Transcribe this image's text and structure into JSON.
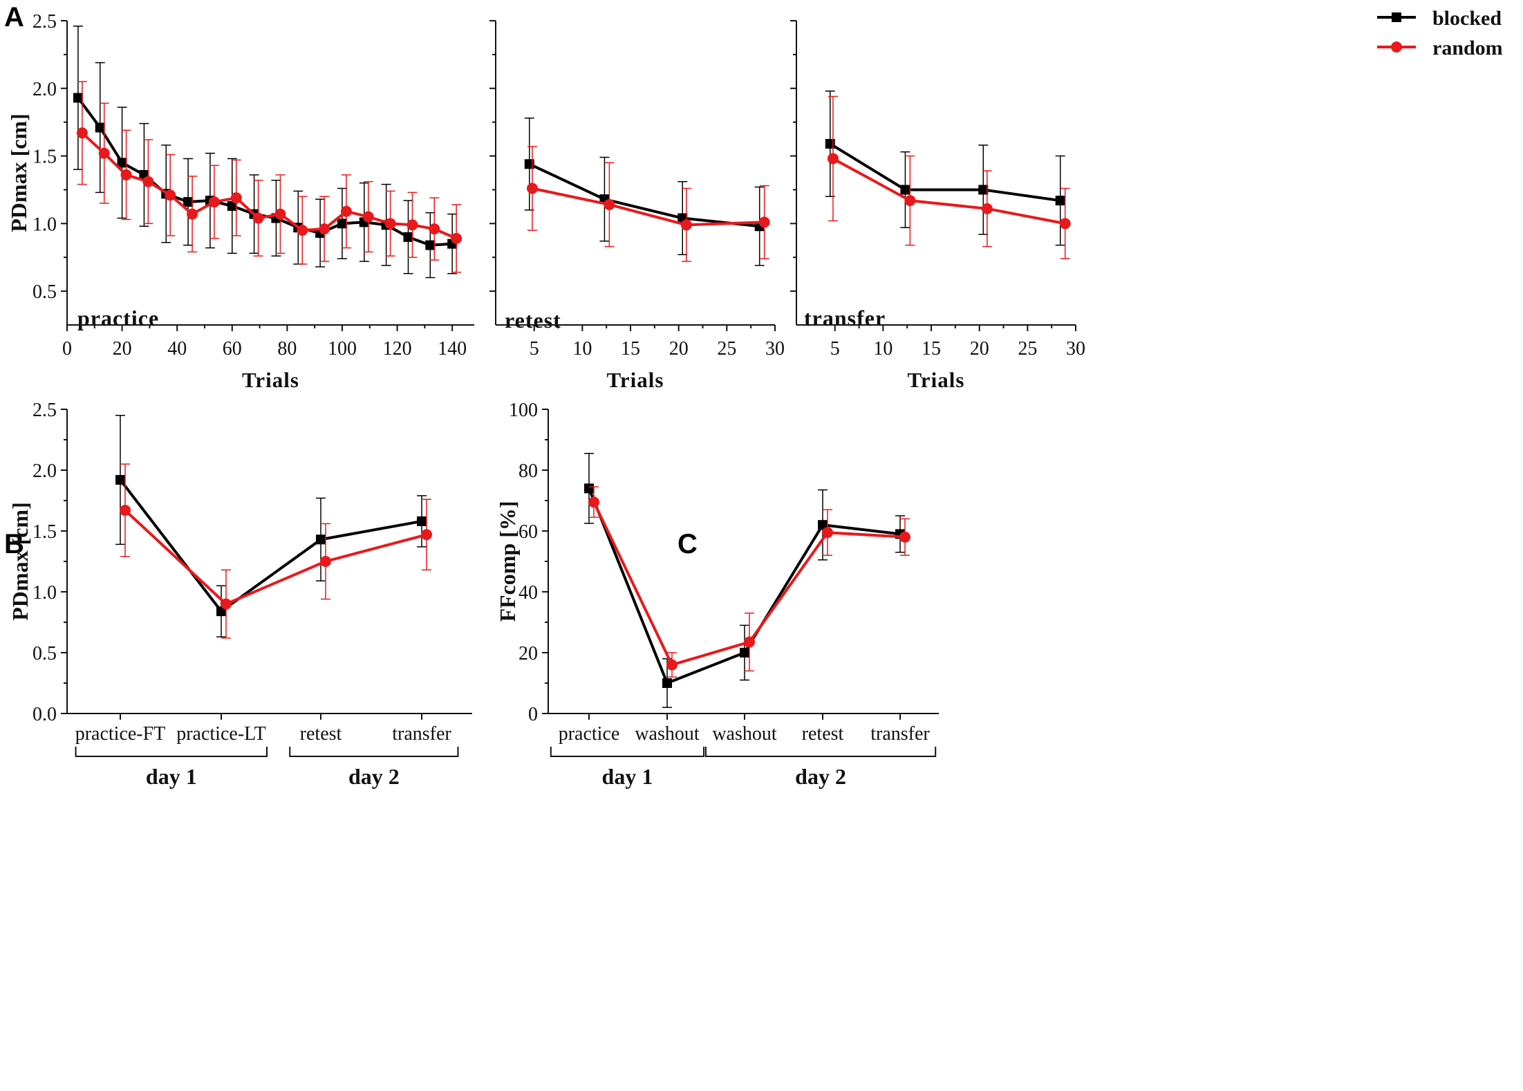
{
  "colors": {
    "blocked": "#000000",
    "random": "#e8191c",
    "axis": "#111111"
  },
  "legend": {
    "items": [
      {
        "name": "blocked",
        "label": "blocked",
        "marker": "square",
        "color": "#000000"
      },
      {
        "name": "random",
        "label": "random",
        "marker": "circle",
        "color": "#e8191c"
      }
    ]
  },
  "panels": [
    {
      "letter": "A"
    },
    {
      "letter": "B"
    },
    {
      "letter": "C"
    }
  ],
  "chart_data": [
    {
      "id": "A1",
      "panel": "A",
      "type": "line",
      "label": "practice",
      "xlabel": "Trials",
      "ylabel": "PDmax [cm]",
      "xlim": [
        0,
        148
      ],
      "ylim": [
        0.25,
        2.5
      ],
      "xticks": [
        0,
        20,
        40,
        60,
        80,
        100,
        120,
        140
      ],
      "yticks": [
        0.5,
        1.0,
        1.5,
        2.0,
        2.5
      ],
      "ytick_labels": [
        "0.5",
        "1.0",
        "1.5",
        "2.0",
        "2.5"
      ],
      "series": [
        {
          "name": "blocked",
          "x": [
            4,
            12,
            20,
            28,
            36,
            44,
            52,
            60,
            68,
            76,
            84,
            92,
            100,
            108,
            116,
            124,
            132,
            140
          ],
          "values": [
            1.93,
            1.71,
            1.45,
            1.36,
            1.22,
            1.16,
            1.17,
            1.13,
            1.07,
            1.04,
            0.97,
            0.93,
            1.0,
            1.01,
            0.99,
            0.9,
            0.84,
            0.85
          ],
          "err": [
            0.53,
            0.48,
            0.41,
            0.38,
            0.36,
            0.32,
            0.35,
            0.35,
            0.29,
            0.28,
            0.27,
            0.25,
            0.26,
            0.29,
            0.3,
            0.27,
            0.24,
            0.22
          ]
        },
        {
          "name": "random",
          "x": [
            5.5,
            13.5,
            21.5,
            29.5,
            37.5,
            45.5,
            53.5,
            61.5,
            69.5,
            77.5,
            85.5,
            93.5,
            101.5,
            109.5,
            117.5,
            125.5,
            133.5,
            141.5
          ],
          "values": [
            1.67,
            1.52,
            1.36,
            1.31,
            1.21,
            1.07,
            1.16,
            1.19,
            1.04,
            1.07,
            0.95,
            0.96,
            1.09,
            1.05,
            1.0,
            0.99,
            0.96,
            0.89
          ],
          "err": [
            0.38,
            0.37,
            0.33,
            0.31,
            0.3,
            0.28,
            0.27,
            0.28,
            0.28,
            0.29,
            0.25,
            0.24,
            0.27,
            0.26,
            0.24,
            0.24,
            0.23,
            0.25
          ]
        }
      ]
    },
    {
      "id": "A2",
      "panel": "A",
      "type": "line",
      "label": "retest",
      "xlabel": "Trials",
      "ylabel": "",
      "xlim": [
        1,
        30
      ],
      "ylim": [
        0.25,
        2.5
      ],
      "xticks": [
        5,
        10,
        15,
        20,
        25,
        30
      ],
      "yticks": [
        0.5,
        1.0,
        1.5,
        2.0,
        2.5
      ],
      "ytick_labels": [],
      "series": [
        {
          "name": "blocked",
          "x": [
            4.5,
            12.3,
            20.4,
            28.4
          ],
          "values": [
            1.44,
            1.18,
            1.04,
            0.98
          ],
          "err": [
            0.34,
            0.31,
            0.27,
            0.29
          ]
        },
        {
          "name": "random",
          "x": [
            4.8,
            12.8,
            20.8,
            28.9
          ],
          "values": [
            1.26,
            1.14,
            0.99,
            1.01
          ],
          "err": [
            0.31,
            0.31,
            0.27,
            0.27
          ]
        }
      ]
    },
    {
      "id": "A3",
      "panel": "A",
      "type": "line",
      "label": "transfer",
      "xlabel": "Trials",
      "ylabel": "",
      "xlim": [
        1,
        30
      ],
      "ylim": [
        0.25,
        2.5
      ],
      "xticks": [
        5,
        10,
        15,
        20,
        25,
        30
      ],
      "yticks": [
        0.5,
        1.0,
        1.5,
        2.0,
        2.5
      ],
      "ytick_labels": [],
      "series": [
        {
          "name": "blocked",
          "x": [
            4.5,
            12.3,
            20.4,
            28.4
          ],
          "values": [
            1.59,
            1.25,
            1.25,
            1.17
          ],
          "err": [
            0.39,
            0.28,
            0.33,
            0.33
          ]
        },
        {
          "name": "random",
          "x": [
            4.8,
            12.8,
            20.8,
            28.9
          ],
          "values": [
            1.48,
            1.17,
            1.11,
            1.0
          ],
          "err": [
            0.46,
            0.33,
            0.28,
            0.26
          ]
        }
      ]
    },
    {
      "id": "B",
      "panel": "B",
      "type": "line",
      "xlabel": "",
      "ylabel": "PDmax [cm]",
      "xlim": [
        0,
        4
      ],
      "ylim": [
        0,
        2.5
      ],
      "yticks": [
        0.0,
        0.5,
        1.0,
        1.5,
        2.0,
        2.5
      ],
      "ytick_labels": [
        "0.0",
        "0.5",
        "1.0",
        "1.5",
        "2.0",
        "2.5"
      ],
      "categories": [
        "practice-FT",
        "practice-LT",
        "retest",
        "transfer"
      ],
      "groups": [
        {
          "label": "day 1",
          "span": [
            0,
            1
          ]
        },
        {
          "label": "day 2",
          "span": [
            2,
            3
          ]
        }
      ],
      "series": [
        {
          "name": "blocked",
          "values": [
            1.92,
            0.84,
            1.43,
            1.58
          ],
          "err": [
            0.53,
            0.21,
            0.34,
            0.21
          ]
        },
        {
          "name": "random",
          "values": [
            1.67,
            0.9,
            1.25,
            1.47
          ],
          "err": [
            0.38,
            0.28,
            0.31,
            0.29
          ]
        }
      ]
    },
    {
      "id": "C",
      "panel": "C",
      "type": "line",
      "xlabel": "",
      "ylabel": "FFcomp [%]",
      "xlim": [
        0,
        5
      ],
      "ylim": [
        0,
        100
      ],
      "yticks": [
        0,
        20,
        40,
        60,
        80,
        100
      ],
      "ytick_labels": [
        "0",
        "20",
        "40",
        "60",
        "80",
        "100"
      ],
      "categories": [
        "practice",
        "washout",
        "washout",
        "retest",
        "transfer"
      ],
      "groups": [
        {
          "label": "day 1",
          "span": [
            0,
            1
          ]
        },
        {
          "label": "day 2",
          "span": [
            2,
            4
          ]
        }
      ],
      "series": [
        {
          "name": "blocked",
          "values": [
            74,
            10,
            20,
            62,
            59
          ],
          "err": [
            11.5,
            8,
            9,
            11.5,
            6
          ]
        },
        {
          "name": "random",
          "values": [
            69.5,
            16,
            23.5,
            59.5,
            58
          ],
          "err": [
            5,
            4,
            9.5,
            7.5,
            6
          ]
        }
      ]
    }
  ]
}
